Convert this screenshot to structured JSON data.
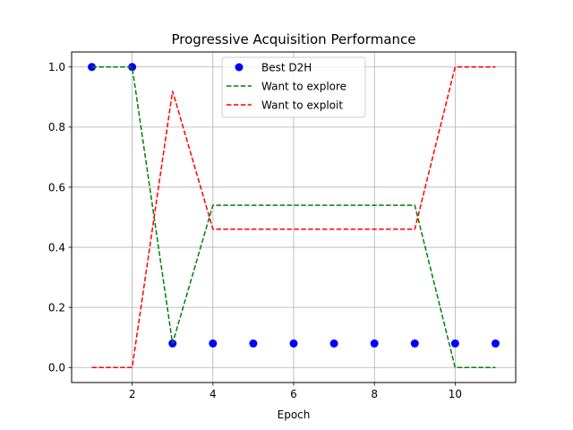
{
  "chart_data": {
    "type": "line",
    "title": "Progressive Acquisition Performance",
    "xlabel": "Epoch",
    "ylabel": "",
    "xlim": [
      0.5,
      11.5
    ],
    "ylim": [
      -0.05,
      1.05
    ],
    "xticks": [
      2,
      4,
      6,
      8,
      10
    ],
    "yticks": [
      0.0,
      0.2,
      0.4,
      0.6,
      0.8,
      1.0
    ],
    "xtick_labels": [
      "2",
      "4",
      "6",
      "8",
      "10"
    ],
    "ytick_labels": [
      "0.0",
      "0.2",
      "0.4",
      "0.6",
      "0.8",
      "1.0"
    ],
    "grid": true,
    "legend_position": "top-center",
    "x": [
      1,
      2,
      3,
      4,
      5,
      6,
      7,
      8,
      9,
      10,
      11
    ],
    "series": [
      {
        "name": "Best D2H",
        "kind": "scatter",
        "color": "#0000ff",
        "values": [
          1.0,
          1.0,
          0.08,
          0.08,
          0.08,
          0.08,
          0.08,
          0.08,
          0.08,
          0.08,
          0.08
        ]
      },
      {
        "name": "Want to explore",
        "kind": "dashed-line",
        "color": "#008000",
        "values": [
          1.0,
          1.0,
          0.08,
          0.54,
          0.54,
          0.54,
          0.54,
          0.54,
          0.54,
          0.0,
          0.0
        ]
      },
      {
        "name": "Want to exploit",
        "kind": "dashed-line",
        "color": "#ff0000",
        "values": [
          0.0,
          0.0,
          0.92,
          0.46,
          0.46,
          0.46,
          0.46,
          0.46,
          0.46,
          1.0,
          1.0
        ]
      }
    ]
  }
}
